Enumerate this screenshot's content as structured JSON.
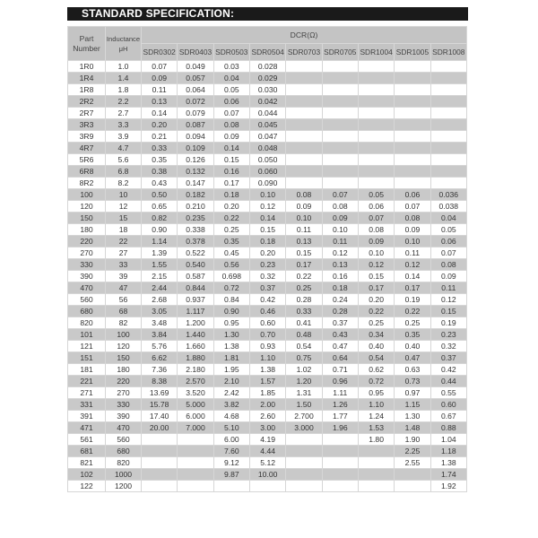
{
  "title": "STANDARD SPECIFICATION:",
  "header": {
    "part_number": "Part Number",
    "inductance": "Inductance μH",
    "dcr": "DCR(Ω)",
    "models": [
      "SDR0302",
      "SDR0403",
      "SDR0503",
      "SDR0504",
      "SDR0703",
      "SDR0705",
      "SDR1004",
      "SDR1005",
      "SDR1008"
    ]
  },
  "rows": [
    [
      "1R0",
      "1.0",
      "0.07",
      "0.049",
      "0.03",
      "0.028",
      "",
      "",
      "",
      "",
      ""
    ],
    [
      "1R4",
      "1.4",
      "0.09",
      "0.057",
      "0.04",
      "0.029",
      "",
      "",
      "",
      "",
      ""
    ],
    [
      "1R8",
      "1.8",
      "0.11",
      "0.064",
      "0.05",
      "0.030",
      "",
      "",
      "",
      "",
      ""
    ],
    [
      "2R2",
      "2.2",
      "0.13",
      "0.072",
      "0.06",
      "0.042",
      "",
      "",
      "",
      "",
      ""
    ],
    [
      "2R7",
      "2.7",
      "0.14",
      "0.079",
      "0.07",
      "0.044",
      "",
      "",
      "",
      "",
      ""
    ],
    [
      "3R3",
      "3.3",
      "0.20",
      "0.087",
      "0.08",
      "0.045",
      "",
      "",
      "",
      "",
      ""
    ],
    [
      "3R9",
      "3.9",
      "0.21",
      "0.094",
      "0.09",
      "0.047",
      "",
      "",
      "",
      "",
      ""
    ],
    [
      "4R7",
      "4.7",
      "0.33",
      "0.109",
      "0.14",
      "0.048",
      "",
      "",
      "",
      "",
      ""
    ],
    [
      "5R6",
      "5.6",
      "0.35",
      "0.126",
      "0.15",
      "0.050",
      "",
      "",
      "",
      "",
      ""
    ],
    [
      "6R8",
      "6.8",
      "0.38",
      "0.132",
      "0.16",
      "0.060",
      "",
      "",
      "",
      "",
      ""
    ],
    [
      "8R2",
      "8.2",
      "0.43",
      "0.147",
      "0.17",
      "0.090",
      "",
      "",
      "",
      "",
      ""
    ],
    [
      "100",
      "10",
      "0.50",
      "0.182",
      "0.18",
      "0.10",
      "0.08",
      "0.07",
      "0.05",
      "0.06",
      "0.036"
    ],
    [
      "120",
      "12",
      "0.65",
      "0.210",
      "0.20",
      "0.12",
      "0.09",
      "0.08",
      "0.06",
      "0.07",
      "0.038"
    ],
    [
      "150",
      "15",
      "0.82",
      "0.235",
      "0.22",
      "0.14",
      "0.10",
      "0.09",
      "0.07",
      "0.08",
      "0.04"
    ],
    [
      "180",
      "18",
      "0.90",
      "0.338",
      "0.25",
      "0.15",
      "0.11",
      "0.10",
      "0.08",
      "0.09",
      "0.05"
    ],
    [
      "220",
      "22",
      "1.14",
      "0.378",
      "0.35",
      "0.18",
      "0.13",
      "0.11",
      "0.09",
      "0.10",
      "0.06"
    ],
    [
      "270",
      "27",
      "1.39",
      "0.522",
      "0.45",
      "0.20",
      "0.15",
      "0.12",
      "0.10",
      "0.11",
      "0.07"
    ],
    [
      "330",
      "33",
      "1.55",
      "0.540",
      "0.56",
      "0.23",
      "0.17",
      "0.13",
      "0.12",
      "0.12",
      "0.08"
    ],
    [
      "390",
      "39",
      "2.15",
      "0.587",
      "0.698",
      "0.32",
      "0.22",
      "0.16",
      "0.15",
      "0.14",
      "0.09"
    ],
    [
      "470",
      "47",
      "2.44",
      "0.844",
      "0.72",
      "0.37",
      "0.25",
      "0.18",
      "0.17",
      "0.17",
      "0.11"
    ],
    [
      "560",
      "56",
      "2.68",
      "0.937",
      "0.84",
      "0.42",
      "0.28",
      "0.24",
      "0.20",
      "0.19",
      "0.12"
    ],
    [
      "680",
      "68",
      "3.05",
      "1.117",
      "0.90",
      "0.46",
      "0.33",
      "0.28",
      "0.22",
      "0.22",
      "0.15"
    ],
    [
      "820",
      "82",
      "3.48",
      "1.200",
      "0.95",
      "0.60",
      "0.41",
      "0.37",
      "0.25",
      "0.25",
      "0.19"
    ],
    [
      "101",
      "100",
      "3.84",
      "1.440",
      "1.30",
      "0.70",
      "0.48",
      "0.43",
      "0.34",
      "0.35",
      "0.23"
    ],
    [
      "121",
      "120",
      "5.76",
      "1.660",
      "1.38",
      "0.93",
      "0.54",
      "0.47",
      "0.40",
      "0.40",
      "0.32"
    ],
    [
      "151",
      "150",
      "6.62",
      "1.880",
      "1.81",
      "1.10",
      "0.75",
      "0.64",
      "0.54",
      "0.47",
      "0.37"
    ],
    [
      "181",
      "180",
      "7.36",
      "2.180",
      "1.95",
      "1.38",
      "1.02",
      "0.71",
      "0.62",
      "0.63",
      "0.42"
    ],
    [
      "221",
      "220",
      "8.38",
      "2.570",
      "2.10",
      "1.57",
      "1.20",
      "0.96",
      "0.72",
      "0.73",
      "0.44"
    ],
    [
      "271",
      "270",
      "13.69",
      "3.520",
      "2.42",
      "1.85",
      "1.31",
      "1.11",
      "0.95",
      "0.97",
      "0.55"
    ],
    [
      "331",
      "330",
      "15.78",
      "5.000",
      "3.82",
      "2.00",
      "1.50",
      "1.26",
      "1.10",
      "1.15",
      "0.60"
    ],
    [
      "391",
      "390",
      "17.40",
      "6.000",
      "4.68",
      "2.60",
      "2.700",
      "1.77",
      "1.24",
      "1.30",
      "0.67"
    ],
    [
      "471",
      "470",
      "20.00",
      "7.000",
      "5.10",
      "3.00",
      "3.000",
      "1.96",
      "1.53",
      "1.48",
      "0.88"
    ],
    [
      "561",
      "560",
      "",
      "",
      "6.00",
      "4.19",
      "",
      "",
      "1.80",
      "1.90",
      "1.04"
    ],
    [
      "681",
      "680",
      "",
      "",
      "7.60",
      "4.44",
      "",
      "",
      "",
      "2.25",
      "1.18"
    ],
    [
      "821",
      "820",
      "",
      "",
      "9.12",
      "5.12",
      "",
      "",
      "",
      "2.55",
      "1.38"
    ],
    [
      "102",
      "1000",
      "",
      "",
      "9.87",
      "10.00",
      "",
      "",
      "",
      "",
      "1.74"
    ],
    [
      "122",
      "1200",
      "",
      "",
      "",
      "",
      "",
      "",
      "",
      "",
      "1.92"
    ]
  ]
}
